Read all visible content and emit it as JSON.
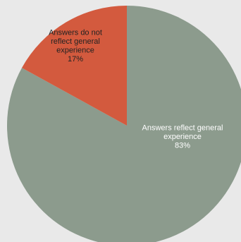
{
  "chart_data": {
    "type": "pie",
    "slices": [
      {
        "label_lines": [
          "Answers reflect general",
          "experience"
        ],
        "percent_label": "83%",
        "value": 83,
        "color": "#8c9b8d"
      },
      {
        "label_lines": [
          "Answers do not",
          "reflect general",
          "experience"
        ],
        "percent_label": "17%",
        "value": 17,
        "color": "#d35a3e"
      }
    ]
  },
  "colors": {
    "background": "#e9e9e9",
    "label_on_green": "#ffffff",
    "label_on_red": "#222222"
  }
}
